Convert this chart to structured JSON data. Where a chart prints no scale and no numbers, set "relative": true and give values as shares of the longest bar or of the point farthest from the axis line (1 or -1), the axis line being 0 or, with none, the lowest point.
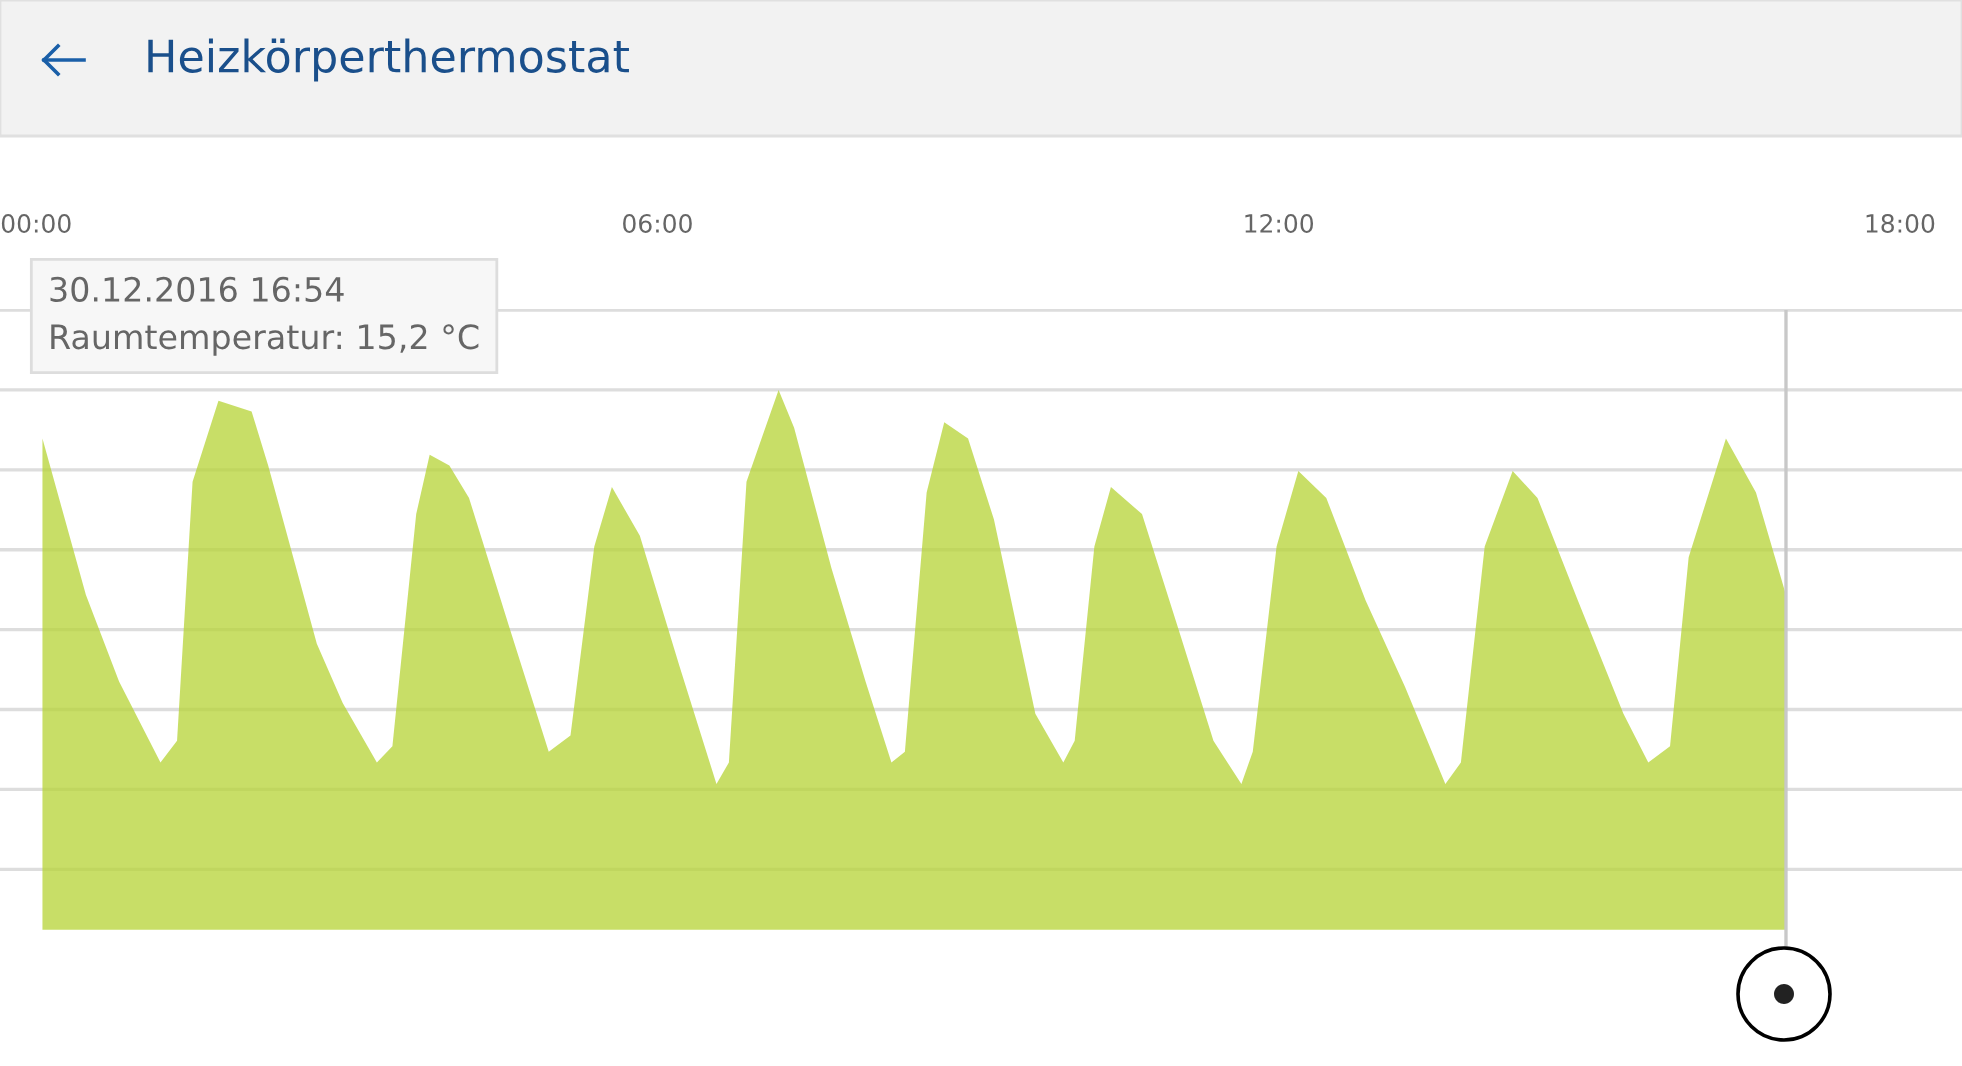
{
  "chart_data": {
    "type": "area",
    "title": "Heizkörperthermostat",
    "relative": true,
    "x": [
      0.06,
      0.48,
      0.8,
      1.2,
      1.36,
      1.51,
      1.76,
      2.08,
      2.24,
      2.71,
      2.96,
      3.29,
      3.44,
      3.67,
      3.8,
      3.99,
      4.18,
      4.57,
      4.95,
      5.16,
      5.39,
      5.56,
      5.83,
      6.21,
      6.57,
      6.69,
      6.86,
      7.17,
      7.32,
      7.68,
      8.01,
      8.26,
      8.39,
      8.6,
      8.77,
      9.0,
      9.25,
      9.65,
      9.92,
      10.03,
      10.22,
      10.38,
      10.68,
      11.06,
      11.37,
      11.64,
      11.75,
      11.98,
      12.19,
      12.46,
      12.84,
      13.22,
      13.61,
      13.76,
      13.99,
      14.26,
      14.5,
      14.89,
      15.33,
      15.57,
      15.78,
      15.96,
      16.32,
      16.61,
      16.9
    ],
    "series": [
      {
        "color": "#b5d334",
        "values": [
          0.91,
          0.62,
          0.46,
          0.31,
          0.35,
          0.83,
          0.98,
          0.96,
          0.86,
          0.53,
          0.42,
          0.31,
          0.34,
          0.77,
          0.88,
          0.86,
          0.8,
          0.56,
          0.33,
          0.36,
          0.71,
          0.82,
          0.73,
          0.49,
          0.27,
          0.31,
          0.83,
          1,
          0.93,
          0.67,
          0.46,
          0.31,
          0.33,
          0.81,
          0.94,
          0.91,
          0.76,
          0.4,
          0.31,
          0.35,
          0.71,
          0.82,
          0.77,
          0.54,
          0.35,
          0.27,
          0.33,
          0.71,
          0.85,
          0.8,
          0.61,
          0.45,
          0.27,
          0.31,
          0.71,
          0.85,
          0.8,
          0.61,
          0.4,
          0.31,
          0.34,
          0.69,
          0.91,
          0.81,
          0.62
        ]
      }
    ],
    "xlim": [
      -0.35,
      18.6
    ],
    "xticks": [
      {
        "value": 0,
        "label": "00:00"
      },
      {
        "value": 6,
        "label": "06:00"
      },
      {
        "value": 12,
        "label": "12:00"
      },
      {
        "value": 18,
        "label": "18:00"
      }
    ],
    "grid": "y",
    "ref_lines": [
      {
        "axis": "x",
        "value": 16.9,
        "color": "#c8c8c8"
      }
    ],
    "annotations": [
      "30.12.2016 16:54",
      "Raumtemperatur: 15,2 °C"
    ]
  }
}
